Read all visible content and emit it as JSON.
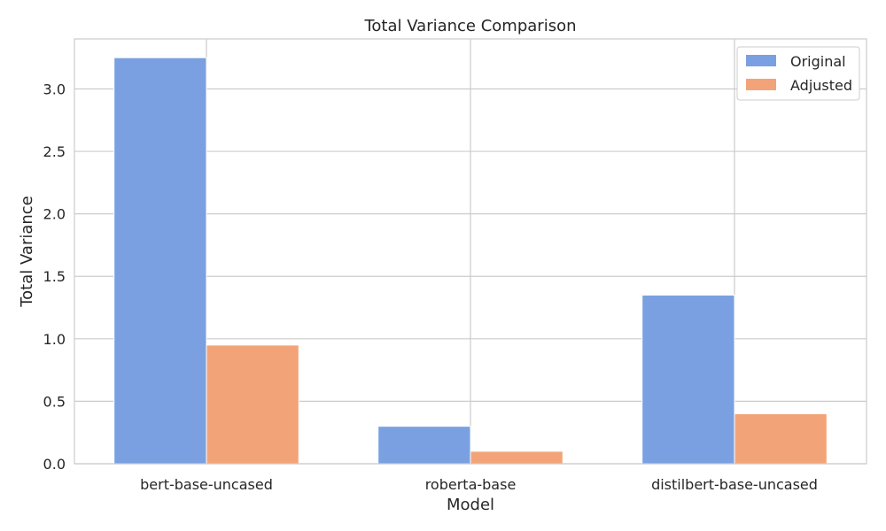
{
  "chart_data": {
    "type": "bar",
    "title": "Total Variance Comparison",
    "xlabel": "Model",
    "ylabel": "Total Variance",
    "categories": [
      "bert-base-uncased",
      "roberta-base",
      "distilbert-base-uncased"
    ],
    "series": [
      {
        "name": "Original",
        "values": [
          3.25,
          0.3,
          1.35
        ],
        "color": "#7aa0e1"
      },
      {
        "name": "Adjusted",
        "values": [
          0.95,
          0.1,
          0.4
        ],
        "color": "#f2a478"
      }
    ],
    "ylim": [
      0,
      3.4
    ],
    "yticks": [
      "0.0",
      "0.5",
      "1.0",
      "1.5",
      "2.0",
      "2.5",
      "3.0"
    ],
    "grid": true,
    "legend_position": "top-right"
  }
}
